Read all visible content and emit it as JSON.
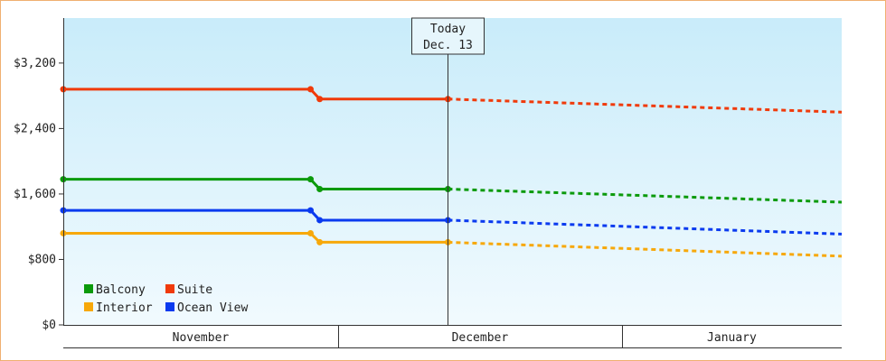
{
  "chart_data": {
    "type": "line",
    "title": "",
    "xlabel": "",
    "ylabel": "",
    "ylim": [
      0,
      3750
    ],
    "y_ticks": [
      0,
      800,
      1600,
      2400,
      3200
    ],
    "y_tick_labels": [
      "$0",
      "$800",
      "$1,600",
      "$2,400",
      "$3,200"
    ],
    "x_range": [
      "2025-11-01",
      "2026-01-25"
    ],
    "months": [
      {
        "label": "November",
        "start": "2025-11-01",
        "end": "2025-12-01"
      },
      {
        "label": "December",
        "start": "2025-12-01",
        "end": "2026-01-01"
      },
      {
        "label": "January",
        "start": "2026-01-01",
        "end": "2026-01-25"
      }
    ],
    "today": {
      "line1": "Today",
      "line2": "Dec. 13",
      "date": "2025-12-13"
    },
    "grid": false,
    "legend_position": "bottom-left",
    "series": [
      {
        "name": "Balcony",
        "color": "#0b9a0b",
        "actual": [
          [
            "2025-11-01",
            1780
          ],
          [
            "2025-11-28",
            1780
          ],
          [
            "2025-11-29",
            1660
          ],
          [
            "2025-12-13",
            1660
          ]
        ],
        "forecast": [
          [
            "2025-12-13",
            1660
          ],
          [
            "2026-01-25",
            1500
          ]
        ]
      },
      {
        "name": "Suite",
        "color": "#f03a0a",
        "actual": [
          [
            "2025-11-01",
            2880
          ],
          [
            "2025-11-28",
            2880
          ],
          [
            "2025-11-29",
            2760
          ],
          [
            "2025-12-13",
            2760
          ]
        ],
        "forecast": [
          [
            "2025-12-13",
            2760
          ],
          [
            "2026-01-25",
            2600
          ]
        ]
      },
      {
        "name": "Interior",
        "color": "#f7a80a",
        "actual": [
          [
            "2025-11-01",
            1120
          ],
          [
            "2025-11-28",
            1120
          ],
          [
            "2025-11-29",
            1010
          ],
          [
            "2025-12-13",
            1010
          ]
        ],
        "forecast": [
          [
            "2025-12-13",
            1010
          ],
          [
            "2026-01-25",
            840
          ]
        ]
      },
      {
        "name": "Ocean View",
        "color": "#0a3aef",
        "actual": [
          [
            "2025-11-01",
            1400
          ],
          [
            "2025-11-28",
            1400
          ],
          [
            "2025-11-29",
            1280
          ],
          [
            "2025-12-13",
            1280
          ]
        ],
        "forecast": [
          [
            "2025-12-13",
            1280
          ],
          [
            "2026-01-25",
            1110
          ]
        ]
      }
    ]
  }
}
